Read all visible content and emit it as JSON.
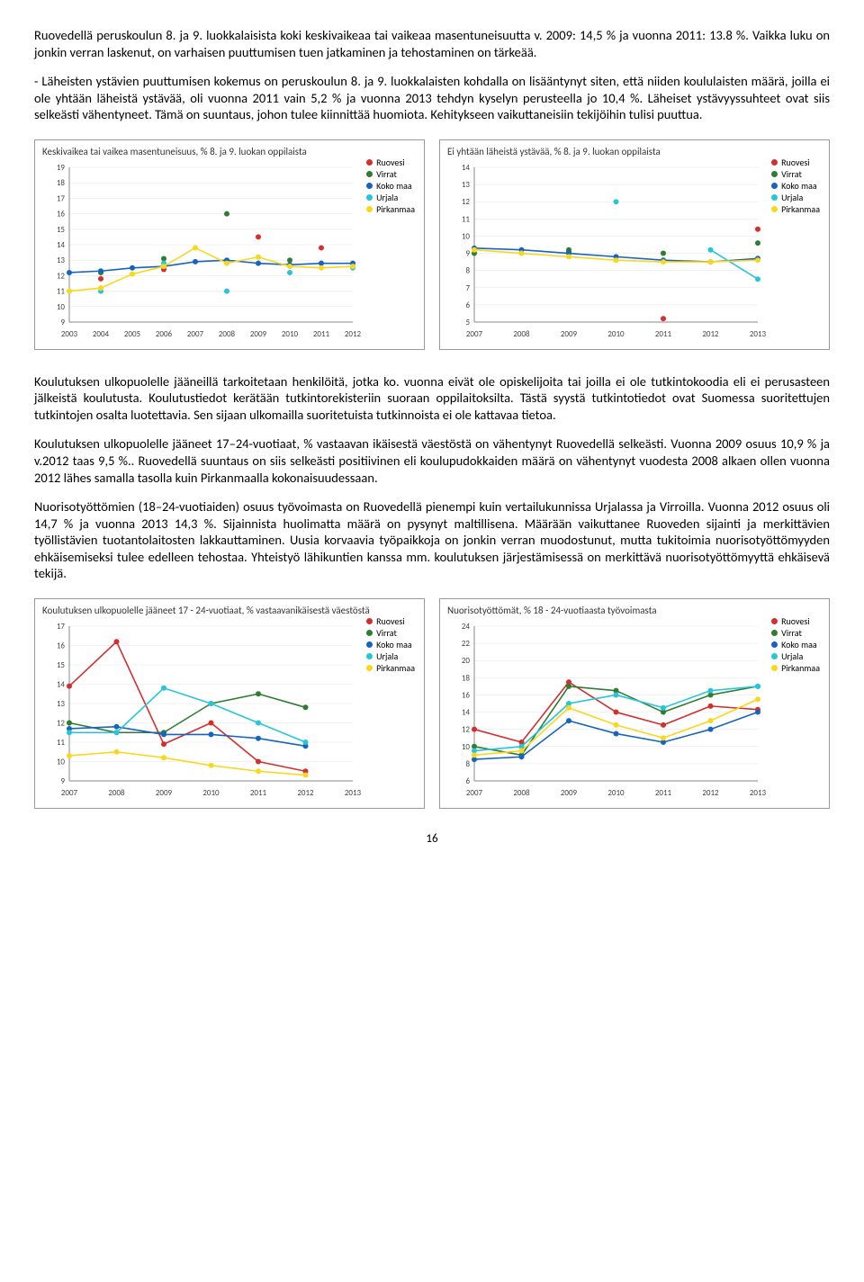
{
  "paragraphs": {
    "p1": "Ruovedellä peruskoulun 8. ja 9. luokkalaisista koki keskivaikeaa tai vaikeaa masentuneisuutta v. 2009: 14,5 % ja vuonna 2011: 13.8 %. Vaikka luku on jonkin verran laskenut, on varhaisen puuttumisen tuen jatkaminen ja tehostaminen on tärkeää.",
    "p2": " - Läheisten ystävien puuttumisen kokemus on peruskoulun 8. ja 9. luokkalaisten kohdalla on lisääntynyt siten, että niiden koululaisten määrä, joilla ei ole yhtään läheistä ystävää, oli vuonna 2011 vain 5,2 % ja vuonna 2013 tehdyn kyselyn perusteella jo 10,4 %. Läheiset ystävyyssuhteet ovat siis selkeästi vähentyneet. Tämä on suuntaus, johon tulee kiinnittää huomiota. Kehitykseen vaikuttaneisiin tekijöihin tulisi puuttua.",
    "p3": "Koulutuksen ulkopuolelle jääneillä tarkoitetaan henkilöitä, jotka ko. vuonna eivät ole opiskelijoita tai joilla ei ole tutkintokoodia eli ei perusasteen jälkeistä koulutusta. Koulutustiedot kerätään tutkintorekisteriin suoraan oppilaitoksilta. Tästä syystä tutkintotiedot ovat Suomessa suoritettujen tutkintojen osalta luotettavia. Sen sijaan ulkomailla suoritetuista tutkinnoista ei ole kattavaa tietoa.",
    "p4": "Koulutuksen ulkopuolelle jääneet 17–24-vuotiaat, % vastaavan ikäisestä väestöstä on vähentynyt Ruovedellä selkeästi. Vuonna 2009 osuus 10,9 % ja v.2012 taas 9,5 %.. Ruovedellä suuntaus on siis selkeästi positiivinen eli koulupudokkaiden määrä on vähentynyt vuodesta 2008 alkaen ollen vuonna 2012 lähes samalla tasolla kuin Pirkanmaalla kokonaisuudessaan.",
    "p5": "Nuorisotyöttömien (18–24-vuotiaiden) osuus työvoimasta on Ruovedellä pienempi kuin vertailukunnissa Urjalassa ja Virroilla.  Vuonna 2012 osuus oli 14,7 % ja vuonna 2013 14,3 %. Sijainnista huolimatta määrä on pysynyt maltillisena. Määrään vaikuttanee Ruoveden sijainti ja merkittävien työllistävien tuotantolaitosten lakkauttaminen. Uusia korvaavia työpaikkoja on jonkin verran muodostunut, mutta tukitoimia nuorisotyöttömyyden ehkäisemiseksi tulee edelleen tehostaa. Yhteistyö lähikuntien kanssa mm. koulutuksen järjestämisessä on merkittävä nuorisotyöttömyyttä ehkäisevä tekijä."
  },
  "colors": {
    "ruovesi": "#d32f2f",
    "virrat": "#2e7d32",
    "kokomaa": "#1565c0",
    "urjala": "#26c6da",
    "pirkanmaa": "#f9d71c",
    "axis": "#888888",
    "grid": "#e6e6e6",
    "text": "#444444"
  },
  "legend": [
    "Ruovesi",
    "Virrat",
    "Koko maa",
    "Urjala",
    "Pirkanmaa"
  ],
  "chart1": {
    "title": "Keskivaikea tai vaikea masentuneisuus, % 8. ja 9. luokan oppilaista",
    "ylim": [
      9,
      19
    ],
    "ytick": 1,
    "xvals": [
      2003,
      2004,
      2005,
      2006,
      2007,
      2008,
      2009,
      2010,
      2011,
      2012
    ],
    "series": {
      "ruovesi": [
        null,
        11.8,
        null,
        12.4,
        null,
        null,
        14.5,
        null,
        13.8,
        null
      ],
      "virrat": [
        null,
        12.2,
        null,
        13.1,
        null,
        16.0,
        null,
        13.0,
        null,
        null
      ],
      "kokomaa": [
        12.2,
        12.3,
        12.5,
        12.6,
        12.9,
        13.0,
        12.8,
        12.7,
        12.8,
        12.8
      ],
      "urjala": [
        null,
        11.0,
        null,
        12.8,
        null,
        11.0,
        null,
        12.2,
        null,
        12.5
      ],
      "pirkanmaa": [
        11.0,
        11.2,
        12.1,
        12.6,
        13.8,
        12.8,
        13.2,
        12.6,
        12.5,
        12.6
      ]
    }
  },
  "chart2": {
    "title": "Ei yhtään läheistä ystävää, % 8. ja 9. luokan oppilaista",
    "ylim": [
      5,
      14
    ],
    "ytick": 1,
    "xvals": [
      2007,
      2008,
      2009,
      2010,
      2011,
      2012,
      2013
    ],
    "series": {
      "ruovesi": [
        null,
        null,
        9.1,
        null,
        5.2,
        null,
        10.4
      ],
      "virrat": [
        9.0,
        null,
        9.2,
        null,
        9.0,
        null,
        9.6
      ],
      "kokomaa": [
        9.3,
        9.2,
        9.0,
        8.8,
        8.6,
        8.5,
        8.7
      ],
      "urjala": [
        null,
        9.0,
        null,
        12.0,
        null,
        9.2,
        7.5
      ],
      "pirkanmaa": [
        9.2,
        9.0,
        8.8,
        8.6,
        8.5,
        8.5,
        8.6
      ]
    }
  },
  "chart3": {
    "title": "Koulutuksen ulkopuolelle jääneet 17 - 24-vuotiaat, % vastaavanikäisestä väestöstä",
    "ylim": [
      9,
      17
    ],
    "ytick": 1,
    "xvals": [
      2007,
      2008,
      2009,
      2010,
      2011,
      2012,
      2013
    ],
    "series": {
      "ruovesi": [
        13.9,
        16.2,
        10.9,
        12.0,
        10.0,
        9.5,
        null
      ],
      "virrat": [
        12.0,
        11.5,
        11.5,
        13.0,
        13.5,
        12.8,
        null
      ],
      "kokomaa": [
        11.7,
        11.8,
        11.4,
        11.4,
        11.2,
        10.8,
        null
      ],
      "urjala": [
        11.5,
        11.5,
        13.8,
        13.0,
        12.0,
        11.0,
        null
      ],
      "pirkanmaa": [
        10.3,
        10.5,
        10.2,
        9.8,
        9.5,
        9.3,
        null
      ]
    }
  },
  "chart4": {
    "title": "Nuorisotyöttömät, % 18 - 24-vuotiaasta työvoimasta",
    "ylim": [
      6,
      24
    ],
    "ytick": 2,
    "xvals": [
      2007,
      2008,
      2009,
      2010,
      2011,
      2012,
      2013
    ],
    "series": {
      "ruovesi": [
        12.0,
        10.5,
        17.5,
        14.0,
        12.5,
        14.7,
        14.3
      ],
      "virrat": [
        10.0,
        9.0,
        17.0,
        16.5,
        14.0,
        16.0,
        17.0
      ],
      "kokomaa": [
        8.5,
        8.8,
        13.0,
        11.5,
        10.5,
        12.0,
        14.0
      ],
      "urjala": [
        9.5,
        10.0,
        15.0,
        16.0,
        14.5,
        16.5,
        17.0
      ],
      "pirkanmaa": [
        9.0,
        9.5,
        14.5,
        12.5,
        11.0,
        13.0,
        15.5
      ]
    }
  },
  "pageNumber": "16"
}
